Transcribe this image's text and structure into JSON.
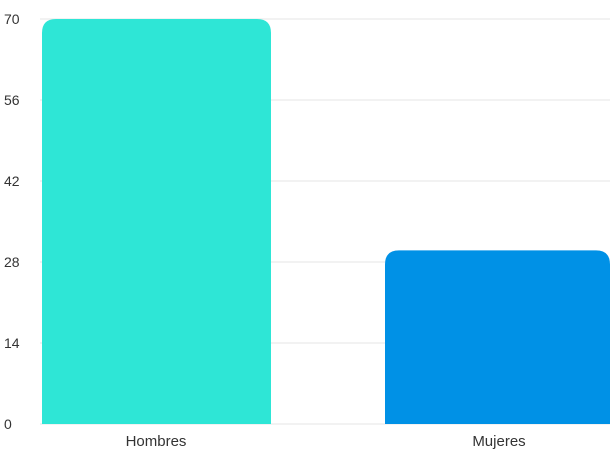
{
  "chart_data": {
    "type": "bar",
    "categories": [
      "Hombres",
      "Mujeres"
    ],
    "values": [
      70,
      30
    ],
    "colors": [
      "#2ee6d6",
      "#0091e6"
    ],
    "ylim": [
      0,
      70
    ],
    "yticks": [
      0,
      14,
      28,
      42,
      56,
      70
    ],
    "grid": true,
    "title": "",
    "xlabel": "",
    "ylabel": ""
  }
}
